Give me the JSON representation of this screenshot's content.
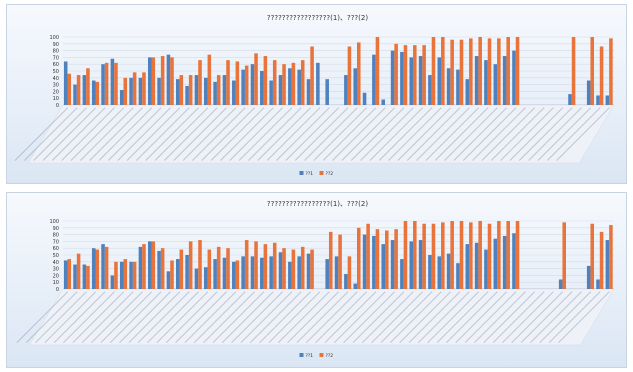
{
  "colors": {
    "series1": "#4f81bd",
    "series2": "#e8743b",
    "grid": "#d3dbe6",
    "axis": "#8d9bb0",
    "text": "#333333"
  },
  "chart_data": [
    {
      "type": "bar",
      "title": "?????????????????(1)、???(2)",
      "ylim": [
        0,
        100
      ],
      "yticks": [
        "0",
        "10",
        "20",
        "30",
        "40",
        "50",
        "60",
        "70",
        "80",
        "90",
        "100"
      ],
      "legend": {
        "position": "bottom",
        "items": [
          "??1",
          "??2"
        ]
      },
      "grid": true,
      "series": [
        {
          "name": "??1",
          "values": [
            64,
            30,
            44,
            36,
            60,
            68,
            22,
            40,
            40,
            70,
            40,
            74,
            38,
            28,
            44,
            40,
            34,
            44,
            36,
            52,
            60,
            50,
            36,
            44,
            54,
            52,
            38,
            62,
            38,
            0,
            44,
            54,
            18,
            74,
            8,
            80,
            78,
            70,
            72,
            44,
            70,
            54,
            52,
            38,
            72,
            66,
            60,
            72,
            80,
            0,
            0,
            0,
            0,
            0,
            16,
            0,
            36,
            14,
            14
          ]
        },
        {
          "name": "??2",
          "values": [
            46,
            44,
            54,
            34,
            62,
            62,
            40,
            48,
            48,
            70,
            72,
            70,
            44,
            44,
            66,
            74,
            44,
            66,
            64,
            58,
            76,
            72,
            66,
            60,
            62,
            66,
            86,
            0,
            0,
            0,
            86,
            92,
            0,
            100,
            0,
            90,
            88,
            88,
            88,
            100,
            100,
            96,
            96,
            98,
            100,
            98,
            98,
            100,
            100,
            0,
            0,
            0,
            0,
            0,
            100,
            0,
            100,
            86,
            98
          ]
        }
      ]
    },
    {
      "type": "bar",
      "title": "?????????????????(1)、???(2)",
      "ylim": [
        0,
        100
      ],
      "yticks": [
        "0",
        "10",
        "20",
        "30",
        "40",
        "50",
        "60",
        "70",
        "80",
        "90",
        "100"
      ],
      "legend": {
        "position": "bottom",
        "items": [
          "??1",
          "??2"
        ]
      },
      "grid": true,
      "series": [
        {
          "name": "??1",
          "values": [
            42,
            36,
            36,
            60,
            66,
            20,
            40,
            40,
            62,
            70,
            56,
            26,
            44,
            50,
            30,
            32,
            44,
            46,
            40,
            48,
            48,
            46,
            48,
            54,
            40,
            48,
            52,
            0,
            44,
            48,
            22,
            8,
            80,
            78,
            66,
            72,
            44,
            70,
            72,
            50,
            48,
            52,
            38,
            66,
            68,
            58,
            74,
            78,
            82,
            0,
            0,
            0,
            0,
            14,
            0,
            0,
            34,
            14,
            72
          ]
        },
        {
          "name": "??2",
          "values": [
            44,
            52,
            34,
            58,
            62,
            40,
            44,
            40,
            66,
            70,
            60,
            42,
            58,
            70,
            72,
            58,
            62,
            60,
            42,
            72,
            70,
            66,
            68,
            60,
            58,
            62,
            58,
            0,
            84,
            80,
            48,
            90,
            96,
            88,
            86,
            88,
            100,
            100,
            96,
            96,
            98,
            100,
            100,
            98,
            100,
            96,
            100,
            100,
            100,
            0,
            0,
            0,
            0,
            98,
            0,
            0,
            96,
            84,
            94
          ]
        }
      ]
    }
  ]
}
